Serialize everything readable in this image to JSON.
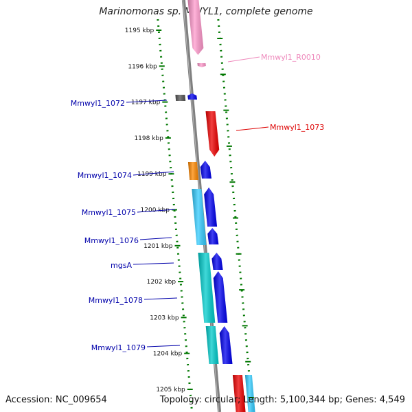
{
  "title": "Marinomonas sp. MWYL1, complete genome",
  "footer": {
    "accession": "Accession: NC_009654",
    "topology": "Topology: circular; Length: 5,100,344 bp; Genes: 4,549"
  },
  "ruler": {
    "ticks": [
      "1195 kbp",
      "1196 kbp",
      "1197 kbp",
      "1198 kbp",
      "1199 kbp",
      "1200 kbp",
      "1201 kbp",
      "1202 kbp",
      "1203 kbp",
      "1204 kbp",
      "1205 kbp"
    ]
  },
  "gene_labels": [
    {
      "text": "Mmwyl1_R0010",
      "color": "#ee88bb",
      "side": "right"
    },
    {
      "text": "Mmwyl1_1072",
      "color": "#0000aa",
      "side": "left"
    },
    {
      "text": "Mmwyl1_1073",
      "color": "#dd0000",
      "side": "right"
    },
    {
      "text": "Mmwyl1_1074",
      "color": "#0000aa",
      "side": "left"
    },
    {
      "text": "Mmwyl1_1075",
      "color": "#0000aa",
      "side": "left"
    },
    {
      "text": "Mmwyl1_1076",
      "color": "#0000aa",
      "side": "left"
    },
    {
      "text": "mgsA",
      "color": "#0000aa",
      "side": "left"
    },
    {
      "text": "Mmwyl1_1078",
      "color": "#0000aa",
      "side": "left"
    },
    {
      "text": "Mmwyl1_1079",
      "color": "#0000aa",
      "side": "left"
    }
  ],
  "colors": {
    "backbone": "#808080",
    "ticks": "#007700",
    "rna": "#ff99cc",
    "red": "#ee0000",
    "blue": "#0000ee",
    "cyan": "#33ccff",
    "teal": "#00cccc",
    "orange": "#ff8800",
    "gray": "#555555"
  }
}
